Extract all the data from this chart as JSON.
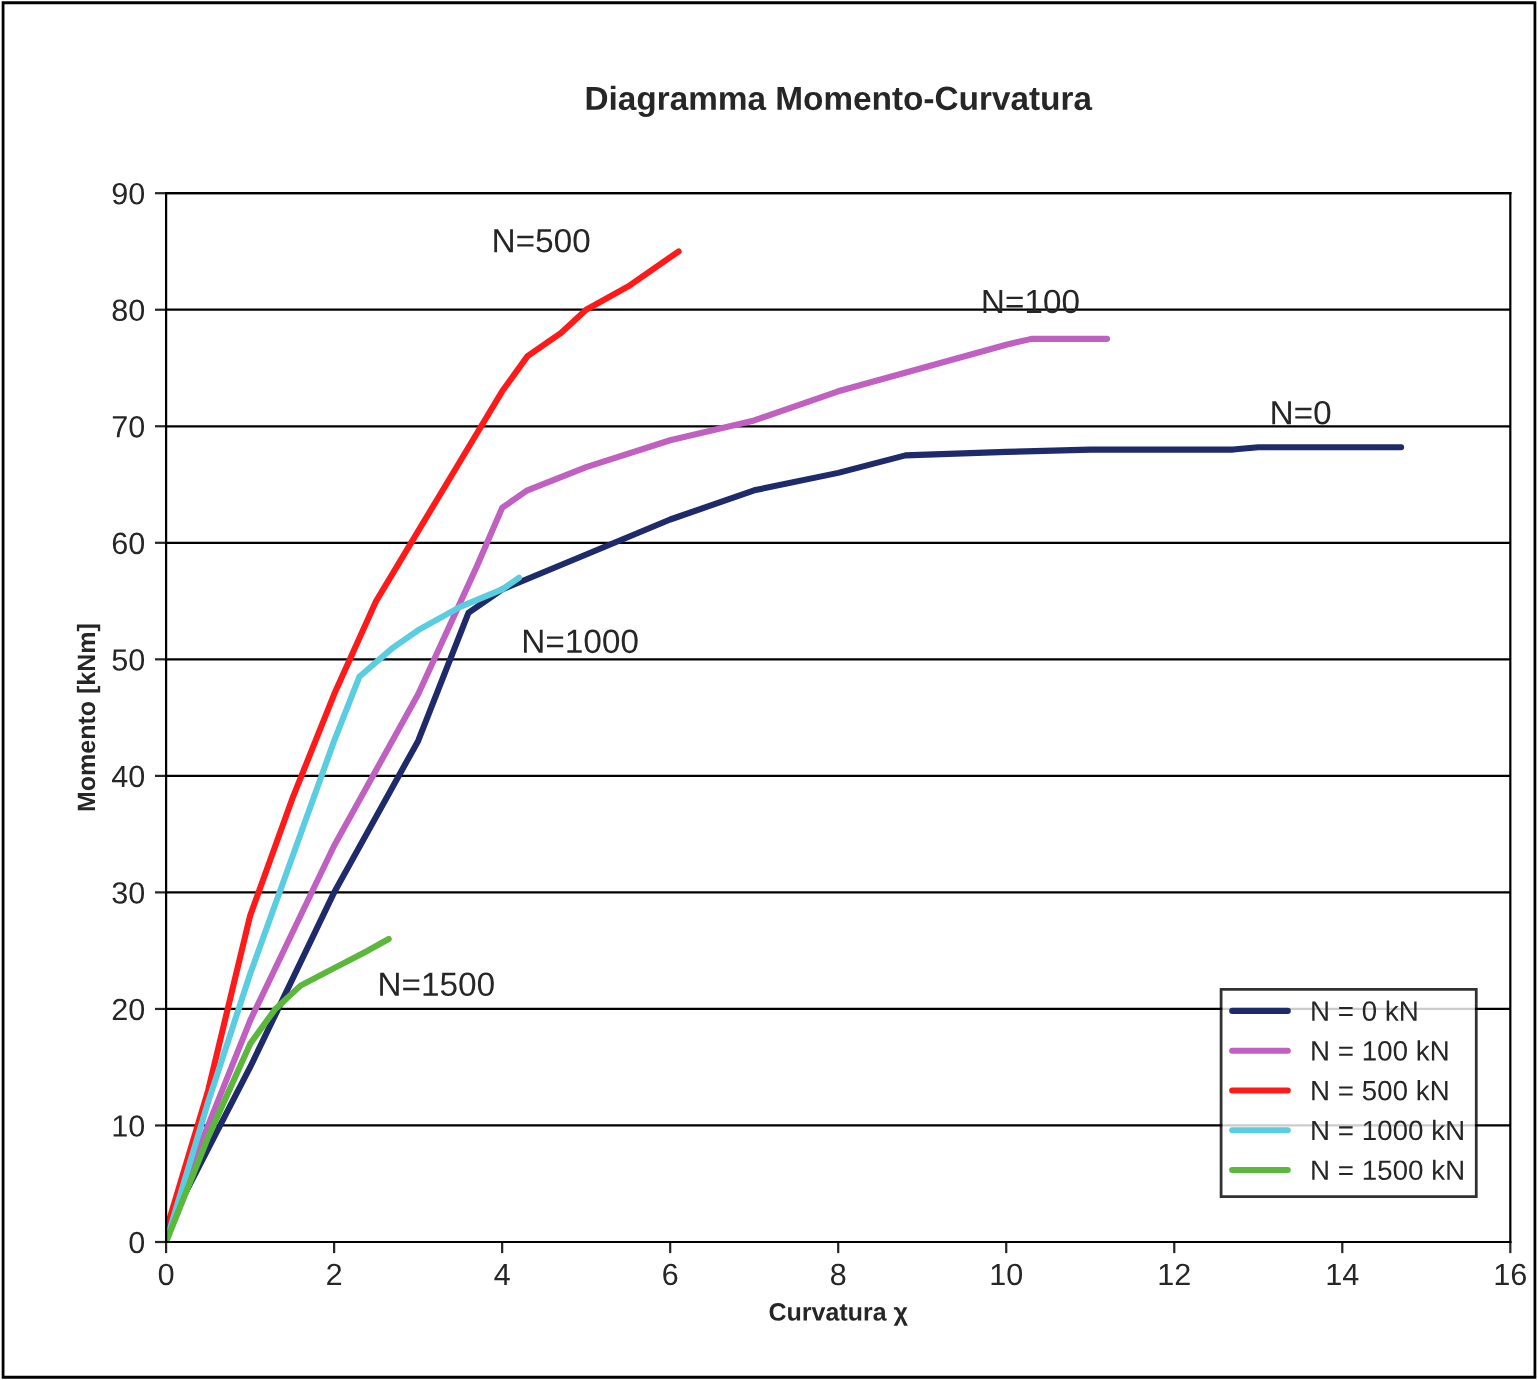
{
  "chart_data": {
    "type": "line",
    "title": "Diagramma Momento-Curvatura",
    "xlabel": "Curvatura χ",
    "ylabel": "Momento [kNm]",
    "xlim": [
      0,
      16
    ],
    "xticks": [
      0,
      2,
      4,
      6,
      8,
      10,
      12,
      14,
      16
    ],
    "ylim": [
      0,
      90
    ],
    "yticks": [
      0,
      10,
      20,
      30,
      40,
      50,
      60,
      70,
      80,
      90
    ],
    "grid": "y",
    "legend": "bottom right",
    "line_style": "solid",
    "series": [
      {
        "name": "N = 0 kN",
        "color": "#1f2a6b",
        "x": [
          0,
          1,
          2,
          3,
          3.6,
          4,
          5,
          6,
          7,
          8,
          8.8,
          10,
          11,
          12.7,
          13,
          14.7
        ],
        "values": [
          1,
          15,
          30,
          43,
          54,
          56,
          59,
          62,
          64.5,
          66,
          67.5,
          67.8,
          68,
          68,
          68.2,
          68.2
        ]
      },
      {
        "name": "N = 100 kN",
        "color": "#c060c0",
        "x": [
          0,
          1,
          2,
          3,
          3.7,
          4,
          4.3,
          5,
          6,
          7,
          8,
          9,
          10,
          10.3,
          11.2
        ],
        "values": [
          1,
          19,
          34,
          47,
          58,
          63,
          64.5,
          66.5,
          68.8,
          70.5,
          73,
          75,
          77,
          77.5,
          77.5
        ]
      },
      {
        "name": "N = 500 kN",
        "color": "#ff1a1a",
        "x": [
          0,
          0.5,
          1,
          1.5,
          2,
          2.5,
          3,
          3.5,
          4,
          4.3,
          4.7,
          5,
          5.5,
          6,
          6.1
        ],
        "values": [
          1,
          13,
          28,
          38,
          47,
          55,
          61,
          67,
          73,
          76,
          78,
          80,
          82,
          84.5,
          85
        ]
      },
      {
        "name": "N = 1000 kN",
        "color": "#5bcde0",
        "x": [
          0,
          0.5,
          1,
          1.5,
          2,
          2.3,
          2.7,
          3,
          3.5,
          4,
          4.2
        ],
        "values": [
          0,
          12,
          23,
          33,
          43,
          48.5,
          51,
          52.5,
          54.5,
          56,
          57
        ]
      },
      {
        "name": "N = 1500 kN",
        "color": "#5cb83c",
        "x": [
          0,
          0.5,
          1,
          1.3,
          1.6,
          2,
          2.4,
          2.65
        ],
        "values": [
          0,
          9,
          17,
          20,
          22,
          23.5,
          25,
          26
        ]
      }
    ],
    "annotations": [
      "N=500",
      "N=100",
      "N=0",
      "N=1000",
      "N=1500"
    ]
  }
}
